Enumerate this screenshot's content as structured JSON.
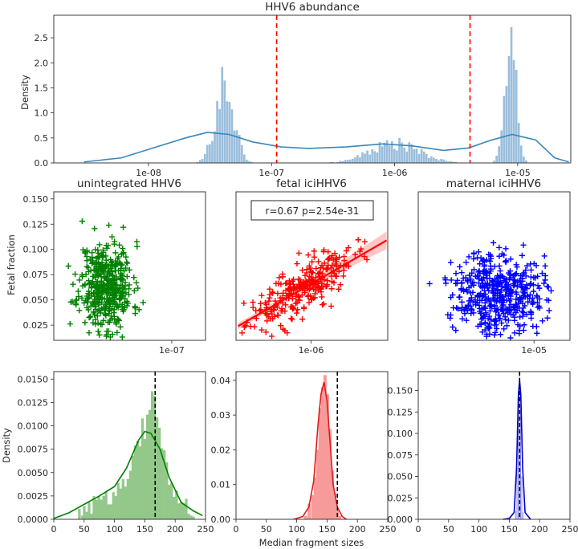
{
  "figure": {
    "top_title": "HHV6 abundance",
    "density_label": "Density",
    "fetal_fraction_label": "Fetal fraction",
    "median_fragment_label": "Median fragment sizes"
  },
  "chart_data": [
    {
      "id": "top",
      "type": "histogram+kde",
      "title": "HHV6 abundance",
      "ylabel": "Density",
      "xscale": "log",
      "xlim": [
        1.7e-09,
        2.7e-05
      ],
      "ylim": [
        0,
        2.95
      ],
      "x_ticks": [
        {
          "v": 1e-08,
          "label": "1e-08"
        },
        {
          "v": 1e-07,
          "label": "1e-07"
        },
        {
          "v": 1e-06,
          "label": "1e-06"
        },
        {
          "v": 1e-05,
          "label": "1e-05"
        }
      ],
      "y_ticks": [
        0.0,
        0.5,
        1.0,
        1.5,
        2.0,
        2.5
      ],
      "y_tick_labels": [
        "0.0",
        "0.5",
        "1.0",
        "1.5",
        "2.0",
        "2.5"
      ],
      "threshold_lines_x": [
        1.1e-07,
        4.1e-06
      ],
      "threshold_color": "#ff0000",
      "hist_color": "#9bbedd",
      "kde_color": "#3a87be",
      "kde_points": [
        [
          3e-09,
          0.02
        ],
        [
          6e-09,
          0.1
        ],
        [
          1e-08,
          0.27
        ],
        [
          2e-08,
          0.5
        ],
        [
          3e-08,
          0.61
        ],
        [
          4.5e-08,
          0.57
        ],
        [
          7e-08,
          0.42
        ],
        [
          1.2e-07,
          0.32
        ],
        [
          2e-07,
          0.29
        ],
        [
          4e-07,
          0.32
        ],
        [
          8e-07,
          0.38
        ],
        [
          1.4e-06,
          0.34
        ],
        [
          2.5e-06,
          0.25
        ],
        [
          4e-06,
          0.3
        ],
        [
          6e-06,
          0.45
        ],
        [
          9e-06,
          0.57
        ],
        [
          1.4e-05,
          0.46
        ],
        [
          2e-05,
          0.1
        ],
        [
          2.6e-05,
          0.02
        ]
      ],
      "hist_groups": [
        {
          "center_log10": -7.38,
          "sd_log10": 0.075,
          "peak": 1.6,
          "range": [
            -7.75,
            -7.05
          ]
        },
        {
          "center_log10": -6.0,
          "sd_log10": 0.2,
          "peak": 0.38,
          "range": [
            -6.55,
            -5.45
          ]
        },
        {
          "center_log10": -5.06,
          "sd_log10": 0.045,
          "peak": 2.8,
          "range": [
            -5.3,
            -4.85
          ]
        }
      ]
    },
    {
      "id": "scatter-unintegrated",
      "type": "scatter",
      "title": "unintegrated HHV6",
      "ylabel": "Fetal fraction",
      "color": "#008000",
      "marker": "+",
      "xscale": "log",
      "xlim": [
        4e-08,
        1.3e-07
      ],
      "ylim": [
        0.01,
        0.157
      ],
      "x_ticks": [
        {
          "v": 1e-07,
          "label": "1e-07"
        }
      ],
      "y_ticks": [
        0.025,
        0.05,
        0.075,
        0.1,
        0.125,
        0.15
      ],
      "y_tick_labels": [
        "0.025",
        "0.050",
        "0.075",
        "0.100",
        "0.125",
        "0.150"
      ],
      "cloud": {
        "n": 450,
        "x_center": 6e-08,
        "x_sd_log10": 0.045,
        "y_mean": 0.064,
        "y_sd": 0.022,
        "seed": 11
      }
    },
    {
      "id": "scatter-fetal",
      "type": "scatter+regression",
      "title": "fetal iciHHV6",
      "annotation": "r=0.67 p=2.54e-31",
      "color": "#ff0000",
      "marker": "+",
      "xscale": "log",
      "xlim": [
        3.3e-07,
        3.1e-06
      ],
      "ylim": [
        0.01,
        0.157
      ],
      "x_ticks": [
        {
          "v": 1e-06,
          "label": "1e-06"
        }
      ],
      "y_ticks": [
        0.025,
        0.05,
        0.075,
        0.1,
        0.125,
        0.15
      ],
      "regression": {
        "x0": 3.4e-07,
        "y0": 0.024,
        "x1": 3.05e-06,
        "y1": 0.109
      },
      "cloud": {
        "n": 280,
        "x_center": 8.5e-07,
        "x_sd_log10": 0.17,
        "y_mean": 0.06,
        "y_sd": 0.012,
        "seed": 23,
        "slope_per_log10": 0.085
      }
    },
    {
      "id": "scatter-maternal",
      "type": "scatter",
      "title": "maternal iciHHV6",
      "color": "#0000ff",
      "marker": "+",
      "xscale": "log",
      "xlim": [
        4.3e-06,
        1.3e-05
      ],
      "ylim": [
        0.01,
        0.157
      ],
      "x_ticks": [
        {
          "v": 1e-05,
          "label": "1e-05"
        }
      ],
      "y_ticks": [
        0.025,
        0.05,
        0.075,
        0.1,
        0.125,
        0.15
      ],
      "cloud": {
        "n": 480,
        "x_center": 7.7e-06,
        "x_sd_log10": 0.07,
        "y_mean": 0.058,
        "y_sd": 0.02,
        "seed": 37
      }
    },
    {
      "id": "frag-unintegrated",
      "type": "histogram+kde",
      "ylabel": "Density",
      "color": "#008000",
      "hist_color": "#93c88a",
      "xlim": [
        0,
        250
      ],
      "ylim": [
        0,
        0.0158
      ],
      "x_ticks": [
        0,
        50,
        100,
        150,
        200,
        250
      ],
      "y_ticks": [
        0.0,
        0.0025,
        0.005,
        0.0075,
        0.01,
        0.0125,
        0.015
      ],
      "y_tick_labels": [
        "0.0000",
        "0.0025",
        "0.0050",
        "0.0075",
        "0.0100",
        "0.0125",
        "0.0150"
      ],
      "vline_x": 167,
      "kde_points": [
        [
          0,
          0.0001
        ],
        [
          25,
          0.0007
        ],
        [
          50,
          0.0016
        ],
        [
          75,
          0.0025
        ],
        [
          100,
          0.0035
        ],
        [
          120,
          0.0055
        ],
        [
          140,
          0.0085
        ],
        [
          150,
          0.0094
        ],
        [
          160,
          0.0092
        ],
        [
          175,
          0.0075
        ],
        [
          190,
          0.0045
        ],
        [
          210,
          0.0018
        ],
        [
          230,
          0.0009
        ],
        [
          245,
          0.0004
        ]
      ],
      "bins": [
        [
          40,
          0.0011
        ],
        [
          45,
          0.0004
        ],
        [
          48,
          0.0014
        ],
        [
          52,
          0.0008
        ],
        [
          56,
          0.0018
        ],
        [
          60,
          0.0006
        ],
        [
          64,
          0.0025
        ],
        [
          68,
          0.0021
        ],
        [
          72,
          0.0025
        ],
        [
          76,
          0.0021
        ],
        [
          80,
          0.0025
        ],
        [
          84,
          0.0029
        ],
        [
          88,
          0.0016
        ],
        [
          92,
          0.0016
        ],
        [
          96,
          0.0029
        ],
        [
          100,
          0.0025
        ],
        [
          104,
          0.0039
        ],
        [
          108,
          0.0033
        ],
        [
          112,
          0.0043
        ],
        [
          116,
          0.0035
        ],
        [
          120,
          0.0043
        ],
        [
          124,
          0.0052
        ],
        [
          128,
          0.0068
        ],
        [
          132,
          0.0079
        ],
        [
          136,
          0.0084
        ],
        [
          140,
          0.0078
        ],
        [
          144,
          0.0108
        ],
        [
          148,
          0.0086
        ],
        [
          152,
          0.0112
        ],
        [
          156,
          0.0117
        ],
        [
          160,
          0.0137
        ],
        [
          164,
          0.0132
        ],
        [
          168,
          0.0109
        ],
        [
          172,
          0.0098
        ],
        [
          176,
          0.0076
        ],
        [
          180,
          0.0074
        ],
        [
          184,
          0.0061
        ],
        [
          188,
          0.0037
        ],
        [
          192,
          0.0039
        ],
        [
          196,
          0.0024
        ],
        [
          200,
          0.0031
        ],
        [
          204,
          0.0017
        ],
        [
          208,
          0.0019
        ],
        [
          212,
          0.0017
        ],
        [
          216,
          0.0022
        ],
        [
          220,
          0.0006
        ],
        [
          224,
          0.0004
        ],
        [
          228,
          0.0003
        ]
      ]
    },
    {
      "id": "frag-fetal",
      "type": "histogram+kde",
      "color": "#e31a1c",
      "hist_color": "#f79a9a",
      "xlim": [
        0,
        250
      ],
      "ylim": [
        0,
        0.0425
      ],
      "x_ticks": [
        0,
        50,
        100,
        150,
        200,
        250
      ],
      "y_ticks": [
        0.0,
        0.01,
        0.02,
        0.03,
        0.04
      ],
      "y_tick_labels": [
        "0.00",
        "0.01",
        "0.02",
        "0.03",
        "0.04"
      ],
      "vline_x": 167,
      "kde_points": [
        [
          95,
          0.0
        ],
        [
          110,
          0.0008
        ],
        [
          120,
          0.0035
        ],
        [
          128,
          0.011
        ],
        [
          135,
          0.027
        ],
        [
          140,
          0.036
        ],
        [
          145,
          0.0395
        ],
        [
          150,
          0.034
        ],
        [
          155,
          0.022
        ],
        [
          160,
          0.01
        ],
        [
          167,
          0.0035
        ],
        [
          175,
          0.0008
        ],
        [
          182,
          0.0
        ]
      ],
      "bins": [
        [
          112,
          0.001
        ],
        [
          118,
          0.0045
        ],
        [
          124,
          0.007
        ],
        [
          128,
          0.012
        ],
        [
          132,
          0.02
        ],
        [
          136,
          0.032
        ],
        [
          140,
          0.038
        ],
        [
          144,
          0.0415
        ],
        [
          148,
          0.036
        ],
        [
          152,
          0.026
        ],
        [
          156,
          0.014
        ],
        [
          160,
          0.0075
        ],
        [
          164,
          0.0025
        ],
        [
          168,
          0.001
        ]
      ]
    },
    {
      "id": "frag-maternal",
      "type": "histogram+kde",
      "color": "#0000cc",
      "hist_color": "#8f8ff0",
      "xlim": [
        0,
        250
      ],
      "ylim": [
        0,
        0.172
      ],
      "x_ticks": [
        0,
        50,
        100,
        150,
        200,
        250
      ],
      "y_ticks": [
        0.0,
        0.025,
        0.05,
        0.075,
        0.1,
        0.125,
        0.15
      ],
      "y_tick_labels": [
        "0.000",
        "0.025",
        "0.050",
        "0.075",
        "0.100",
        "0.125",
        "0.150"
      ],
      "vline_x": 167,
      "kde_points": [
        [
          140,
          0.0
        ],
        [
          150,
          0.001
        ],
        [
          158,
          0.008
        ],
        [
          162,
          0.06
        ],
        [
          165,
          0.145
        ],
        [
          167,
          0.162
        ],
        [
          169,
          0.145
        ],
        [
          172,
          0.06
        ],
        [
          176,
          0.008
        ],
        [
          185,
          0.0
        ]
      ],
      "bins": [
        [
          160,
          0.01
        ],
        [
          162,
          0.06
        ],
        [
          164,
          0.14
        ],
        [
          166,
          0.168
        ],
        [
          168,
          0.13
        ],
        [
          170,
          0.05
        ],
        [
          172,
          0.008
        ]
      ]
    }
  ]
}
